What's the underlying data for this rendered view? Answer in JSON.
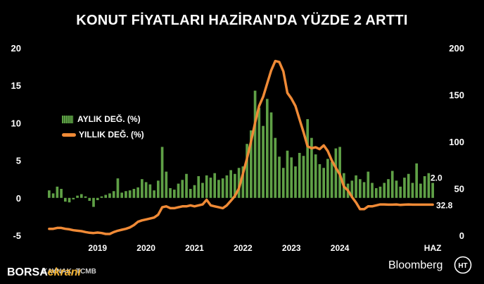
{
  "title": "KONUT FİYATLARI HAZİRAN'DA YÜZDE 2 ARTTI",
  "source": "KAYNAK: TCMB",
  "brand": {
    "part1": "BORSA",
    "part2": "ekranı"
  },
  "bloomberg": "Bloomberg",
  "logo_letters": "HT",
  "colors": {
    "bar": "#5fa046",
    "line": "#f08a36",
    "background": "#000000",
    "text": "#ffffff"
  },
  "chart_data": {
    "type": "bar+line",
    "title": "KONUT FİYATLARI HAZİRAN'DA YÜZDE 2 ARTTI",
    "x_tick_labels": [
      "2019",
      "2020",
      "2021",
      "2022",
      "2023",
      "2024",
      "HAZ"
    ],
    "left_axis": {
      "ylim": [
        -5,
        20
      ],
      "ticks": [
        -5,
        0,
        5,
        10,
        15,
        20
      ]
    },
    "right_axis": {
      "ylim": [
        0,
        200
      ],
      "ticks": [
        0,
        50,
        100,
        150,
        200
      ]
    },
    "start": "2018-01",
    "end": "2024-06",
    "series": [
      {
        "name": "AYLIK DEĞ. (%)",
        "type": "bar",
        "axis": "left",
        "color": "#5fa046",
        "values": [
          1.0,
          0.6,
          1.5,
          1.2,
          -0.5,
          -0.6,
          -0.2,
          0.3,
          0.5,
          0.2,
          -0.4,
          -1.2,
          -0.3,
          0.2,
          0.4,
          0.6,
          0.9,
          2.6,
          0.7,
          0.9,
          1.0,
          1.2,
          1.4,
          2.5,
          2.1,
          1.8,
          1.0,
          2.3,
          6.8,
          3.5,
          1.3,
          1.1,
          1.9,
          2.4,
          3.2,
          1.2,
          1.7,
          2.9,
          2.0,
          3.0,
          2.7,
          3.3,
          2.4,
          2.6,
          3.0,
          3.7,
          3.2,
          4.0,
          4.2,
          7.2,
          9.0,
          14.3,
          12.0,
          9.6,
          13.2,
          11.4,
          8.0,
          5.5,
          4.0,
          6.3,
          5.4,
          4.2,
          6.0,
          5.6,
          10.5,
          8.0,
          5.8,
          4.5,
          4.0,
          5.2,
          4.8,
          6.6,
          6.8,
          3.3,
          1.9,
          2.3,
          3.0,
          2.5,
          2.1,
          3.5,
          2.0,
          1.3,
          1.5,
          2.0,
          2.5,
          3.6,
          2.3,
          1.5,
          2.7,
          3.2,
          2.0,
          4.6,
          1.9,
          2.9,
          3.3,
          2.0
        ]
      },
      {
        "name": "YILLIK DEĞ. (%)",
        "type": "line",
        "axis": "right",
        "color": "#f08a36",
        "values": [
          7.0,
          7.0,
          8.0,
          8.0,
          7.0,
          6.5,
          5.5,
          5.0,
          4.5,
          3.5,
          2.8,
          2.5,
          3.0,
          2.5,
          1.5,
          1.5,
          3.5,
          5.0,
          6.0,
          7.0,
          8.5,
          11.0,
          14.5,
          16.0,
          17.0,
          18.0,
          19.0,
          22.0,
          30.0,
          31.0,
          29.0,
          29.0,
          30.0,
          31.0,
          31.0,
          32.0,
          31.0,
          32.0,
          33.0,
          38.0,
          32.0,
          31.0,
          30.0,
          29.0,
          32.0,
          37.0,
          42.0,
          50.0,
          66.0,
          82.0,
          100.0,
          120.0,
          138.0,
          148.0,
          162.0,
          176.0,
          186.0,
          185.0,
          175.0,
          152.0,
          146.0,
          138.0,
          124.0,
          110.0,
          95.0,
          93.0,
          94.0,
          92.0,
          96.0,
          90.0,
          80.0,
          72.0,
          65.0,
          52.0,
          48.0,
          41.0,
          35.0,
          28.0,
          28.0,
          31.0,
          31.0,
          32.0,
          33.0,
          33.0,
          32.8,
          32.8,
          33.0,
          32.5,
          32.8,
          33.0,
          32.8,
          32.8,
          32.8,
          32.8,
          32.8,
          32.8
        ]
      }
    ],
    "end_labels": [
      {
        "series": "AYLIK DEĞ. (%)",
        "text": "2.0"
      },
      {
        "series": "YILLIK DEĞ. (%)",
        "text": "32.8"
      }
    ]
  }
}
